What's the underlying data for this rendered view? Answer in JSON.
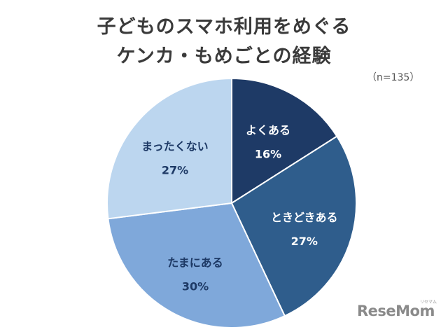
{
  "title_line1": "子どものスマホ利用をめぐる",
  "title_line2": "ケンカ・もめごとの経験",
  "note": "（n=135）",
  "logo": "ReseMom",
  "logo_small": "リセマム",
  "chart_data": {
    "type": "pie",
    "start": "12 o'clock, clockwise",
    "slices": [
      {
        "label": "よくある",
        "value": 16,
        "value_label": "16%",
        "color": "#1e3a66",
        "text_color": "#ffffff"
      },
      {
        "label": "ときどきある",
        "value": 27,
        "value_label": "27%",
        "color": "#2f5d8c",
        "text_color": "#ffffff"
      },
      {
        "label": "たまにある",
        "value": 30,
        "value_label": "30%",
        "color": "#7fa8da",
        "text_color": "#1e3a66"
      },
      {
        "label": "まったくない",
        "value": 27,
        "value_label": "27%",
        "color": "#bcd6ef",
        "text_color": "#1e3a66"
      }
    ],
    "legend": "none"
  }
}
